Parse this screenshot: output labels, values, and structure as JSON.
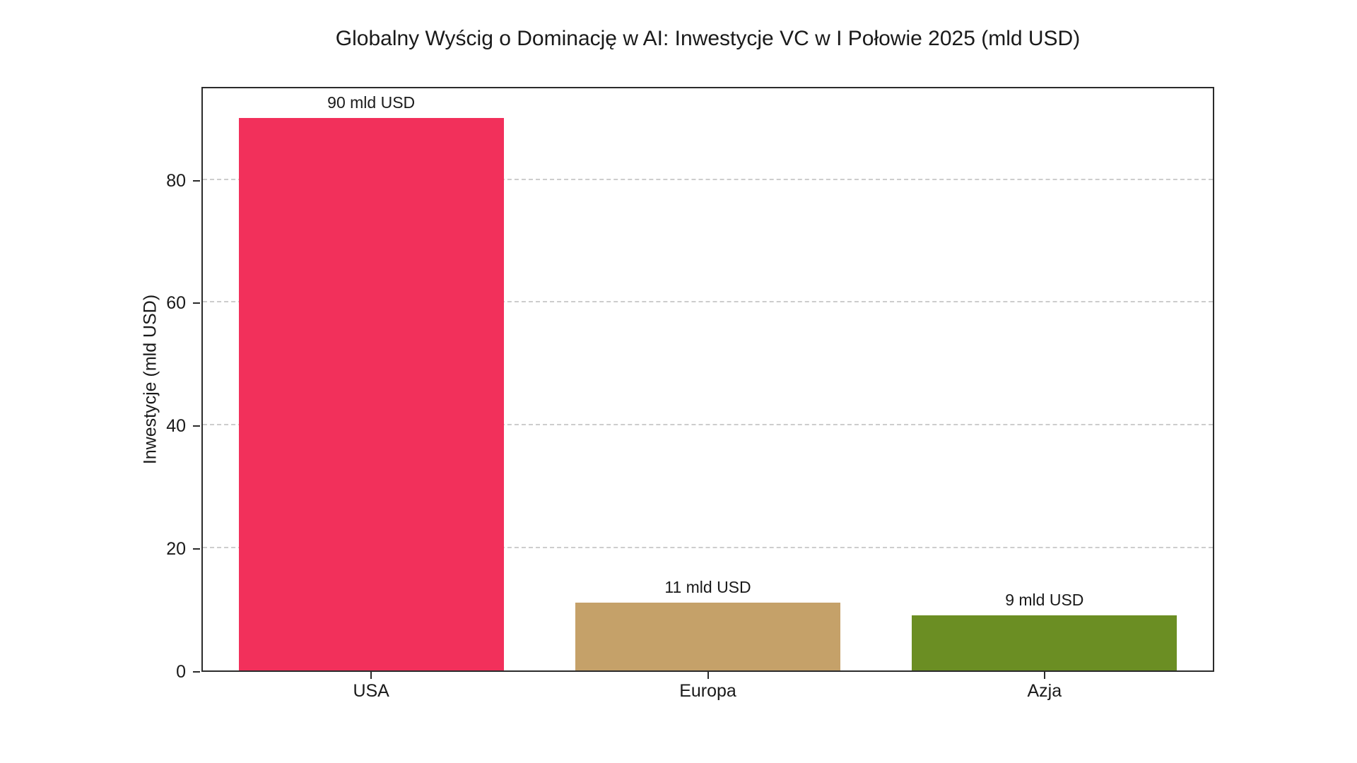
{
  "figure": {
    "title": "Globalny Wyścig o Dominację w AI: Inwestycje VC w I Połowie 2025 (mld USD)"
  },
  "chart_data": {
    "type": "bar",
    "title": "Globalny Wyścig o Dominację w AI: Inwestycje VC w I Połowie 2025 (mld USD)",
    "categories": [
      "USA",
      "Europa",
      "Azja"
    ],
    "values": [
      90,
      11,
      9
    ],
    "bar_labels": [
      "90 mld USD",
      "11 mld USD",
      "9 mld USD"
    ],
    "bar_colors": [
      "#F2305B",
      "#C5A169",
      "#6B8E23"
    ],
    "xlabel": "",
    "ylabel": "Inwestycje (mld USD)",
    "yticks": [
      0,
      20,
      40,
      60,
      80
    ],
    "ylim": [
      0,
      94.8
    ],
    "grid": "horizontal-dashed",
    "legend": "none"
  },
  "colors": {
    "background": "#ffffff",
    "text": "#1a1a1a",
    "spine": "#2b2b2b",
    "gridline": "#cdcdcd"
  }
}
